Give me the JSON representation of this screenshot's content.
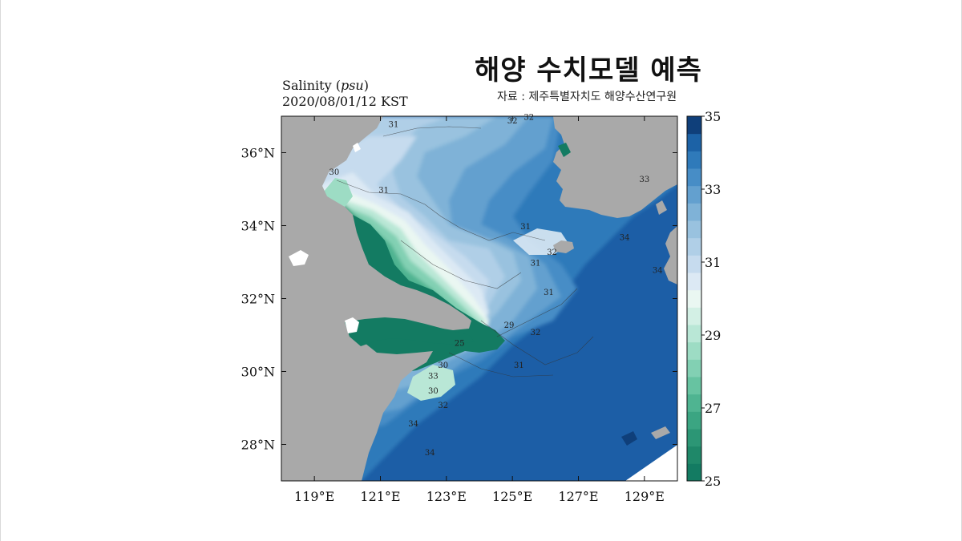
{
  "headline": "해양 수치모델 예측",
  "source": "자료 : 제주특별자치도 해양수산연구원",
  "plot": {
    "variable": "Salinity",
    "unit": "psu",
    "timestamp": "2020/08/01/12 KST"
  },
  "map": {
    "lon_range": [
      118,
      130
    ],
    "lat_range": [
      27,
      37
    ],
    "lon_ticks": [
      {
        "value": 119,
        "label": "119°E"
      },
      {
        "value": 121,
        "label": "121°E"
      },
      {
        "value": 123,
        "label": "123°E"
      },
      {
        "value": 125,
        "label": "125°E"
      },
      {
        "value": 127,
        "label": "127°E"
      },
      {
        "value": 129,
        "label": "129°E"
      }
    ],
    "lat_ticks": [
      {
        "value": 36,
        "label": "36°N"
      },
      {
        "value": 34,
        "label": "34°N"
      },
      {
        "value": 32,
        "label": "32°N"
      },
      {
        "value": 30,
        "label": "30°N"
      },
      {
        "value": 28,
        "label": "28°N"
      }
    ],
    "land_color": "#a9a9a9",
    "contour_labels": [
      {
        "text": "31",
        "lon": 121.4,
        "lat": 36.7
      },
      {
        "text": "32",
        "lon": 125.0,
        "lat": 36.8
      },
      {
        "text": "32",
        "lon": 125.5,
        "lat": 36.9
      },
      {
        "text": "30",
        "lon": 119.6,
        "lat": 35.4
      },
      {
        "text": "31",
        "lon": 121.1,
        "lat": 34.9
      },
      {
        "text": "31",
        "lon": 125.4,
        "lat": 33.9
      },
      {
        "text": "32",
        "lon": 126.2,
        "lat": 33.2
      },
      {
        "text": "31",
        "lon": 125.7,
        "lat": 32.9
      },
      {
        "text": "31",
        "lon": 126.1,
        "lat": 32.1
      },
      {
        "text": "29",
        "lon": 124.9,
        "lat": 31.2
      },
      {
        "text": "32",
        "lon": 125.7,
        "lat": 31.0
      },
      {
        "text": "31",
        "lon": 125.2,
        "lat": 30.1
      },
      {
        "text": "25",
        "lon": 123.4,
        "lat": 30.7
      },
      {
        "text": "30",
        "lon": 122.9,
        "lat": 30.1
      },
      {
        "text": "33",
        "lon": 122.6,
        "lat": 29.8
      },
      {
        "text": "30",
        "lon": 122.6,
        "lat": 29.4
      },
      {
        "text": "32",
        "lon": 122.9,
        "lat": 29.0
      },
      {
        "text": "34",
        "lon": 122.0,
        "lat": 28.5
      },
      {
        "text": "34",
        "lon": 122.5,
        "lat": 27.7
      },
      {
        "text": "33",
        "lon": 129.0,
        "lat": 35.2
      },
      {
        "text": "34",
        "lon": 128.4,
        "lat": 33.6
      },
      {
        "text": "34",
        "lon": 129.4,
        "lat": 32.7
      }
    ]
  },
  "colorbar": {
    "min": 25,
    "max": 35,
    "step": 0.5,
    "tick_labels": [
      "25",
      "27",
      "29",
      "31",
      "33",
      "35"
    ],
    "colors": [
      "#137b62",
      "#1f8869",
      "#2c9675",
      "#3ba582",
      "#4fb491",
      "#67c3a1",
      "#82d0b3",
      "#9ddcc4",
      "#b9e7d6",
      "#d3f0e5",
      "#eaf7f2",
      "#dce9f4",
      "#c6dbee",
      "#b0cfe7",
      "#99c2df",
      "#7fb2d7",
      "#63a0cf",
      "#478dc6",
      "#2f7aba",
      "#1c62a6",
      "#0f3f7a"
    ]
  }
}
